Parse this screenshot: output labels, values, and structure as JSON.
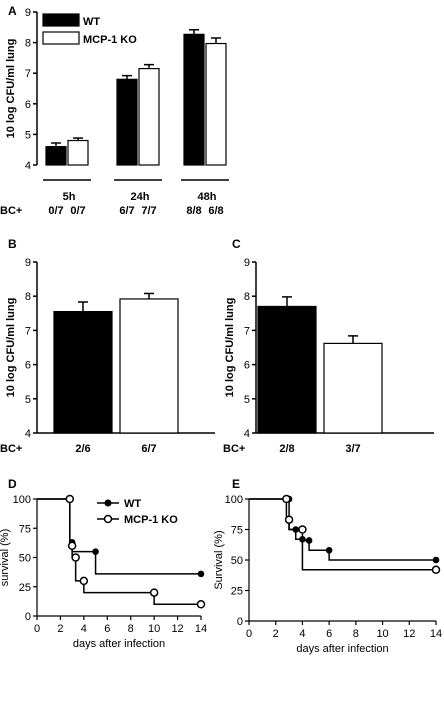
{
  "chart_data": [
    {
      "panel": "A",
      "type": "bar",
      "ylabel": "10 log CFU/ml lung",
      "ylim": [
        4,
        9
      ],
      "yticks": [
        4,
        5,
        6,
        7,
        8,
        9
      ],
      "groups": [
        "5h",
        "24h",
        "48h"
      ],
      "row_label": "BC+",
      "series": [
        {
          "name": "WT",
          "color": "#000000",
          "values": [
            4.6,
            6.8,
            8.27
          ],
          "errors": [
            0.12,
            0.12,
            0.15
          ],
          "bc": [
            "0/7",
            "6/7",
            "8/8"
          ]
        },
        {
          "name": "MCP-1 KO",
          "color": "#ffffff",
          "values": [
            4.8,
            7.15,
            7.97
          ],
          "errors": [
            0.08,
            0.13,
            0.18
          ],
          "bc": [
            "0/7",
            "7/7",
            "6/8"
          ]
        }
      ],
      "legend": "top-left"
    },
    {
      "panel": "B",
      "type": "bar",
      "ylabel": "10 log CFU/ml lung",
      "ylim": [
        4,
        9
      ],
      "yticks": [
        4,
        5,
        6,
        7,
        8,
        9
      ],
      "row_label": "BC+",
      "bars": [
        {
          "color": "#000000",
          "value": 7.55,
          "error": 0.28,
          "bc": "2/6"
        },
        {
          "color": "#ffffff",
          "value": 7.92,
          "error": 0.16,
          "bc": "6/7"
        }
      ]
    },
    {
      "panel": "C",
      "type": "bar",
      "ylabel": "10 log CFU/ml lung",
      "ylim": [
        4,
        9
      ],
      "yticks": [
        4,
        5,
        6,
        7,
        8,
        9
      ],
      "row_label": "BC+",
      "bars": [
        {
          "color": "#000000",
          "value": 7.7,
          "error": 0.28,
          "bc": "2/8"
        },
        {
          "color": "#ffffff",
          "value": 6.62,
          "error": 0.22,
          "bc": "3/7"
        }
      ]
    },
    {
      "panel": "D",
      "type": "line",
      "step": true,
      "ylabel": "survival (%)",
      "xlabel": "days after infection",
      "xlim": [
        0,
        14
      ],
      "ylim": [
        0,
        100
      ],
      "xticks": [
        0,
        2,
        4,
        6,
        8,
        10,
        12,
        14
      ],
      "yticks": [
        0,
        25,
        50,
        75,
        100
      ],
      "legend": "top-right",
      "series": [
        {
          "name": "WT",
          "marker": "filled",
          "x": [
            0,
            2.8,
            3,
            5,
            14
          ],
          "y": [
            100,
            63,
            55,
            36,
            36
          ]
        },
        {
          "name": "MCP-1 KO",
          "marker": "open",
          "x": [
            0,
            2.8,
            3,
            3.3,
            4,
            10,
            14
          ],
          "y": [
            100,
            60,
            50,
            30,
            20,
            10,
            10
          ]
        }
      ]
    },
    {
      "panel": "E",
      "type": "line",
      "step": true,
      "ylabel": "Survival (%)",
      "xlabel": "days after infection",
      "xlim": [
        0,
        14
      ],
      "ylim": [
        0,
        100
      ],
      "xticks": [
        0,
        2,
        4,
        6,
        8,
        10,
        12,
        14
      ],
      "yticks": [
        0,
        25,
        50,
        75,
        100
      ],
      "series": [
        {
          "name": "",
          "marker": "filled",
          "x": [
            0,
            3,
            3.5,
            4,
            4.5,
            6,
            14
          ],
          "y": [
            100,
            75,
            67,
            66,
            58,
            50,
            50
          ]
        },
        {
          "name": "",
          "marker": "open",
          "x": [
            0,
            2.8,
            3,
            4,
            14
          ],
          "y": [
            100,
            83,
            75,
            42,
            42
          ]
        }
      ]
    }
  ]
}
